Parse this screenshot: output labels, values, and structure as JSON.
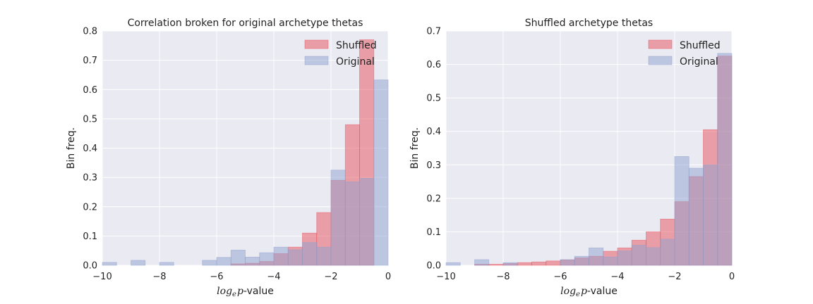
{
  "chart_data": [
    {
      "type": "bar",
      "title": "Correlation broken for original archetype thetas",
      "ylabel": "Bin freq.",
      "xlabel": {
        "prefix": "log",
        "subscript": "e",
        "variable": "p",
        "suffix": "-value"
      },
      "xlim": [
        -10,
        0
      ],
      "ylim": [
        0,
        0.8
      ],
      "xticks": [
        -10,
        -8,
        -6,
        -4,
        -2,
        0
      ],
      "xtick_labels": [
        "−10",
        "−8",
        "−6",
        "−4",
        "−2",
        "0"
      ],
      "yticks": [
        0.0,
        0.1,
        0.2,
        0.3,
        0.4,
        0.5,
        0.6,
        0.7,
        0.8
      ],
      "ytick_labels": [
        "0.0",
        "0.1",
        "0.2",
        "0.3",
        "0.4",
        "0.5",
        "0.6",
        "0.7",
        "0.8"
      ],
      "grid": true,
      "legend_position": "top-right",
      "bin_edges": [
        -10,
        -9.5,
        -9,
        -8.5,
        -8,
        -7.5,
        -7,
        -6.5,
        -6,
        -5.5,
        -5,
        -4.5,
        -4,
        -3.5,
        -3,
        -2.5,
        -2,
        -1.5,
        -1,
        -0.5,
        0
      ],
      "series": [
        {
          "name": "Shuffled",
          "color": "#e8525c",
          "values": [
            0,
            0,
            0,
            0,
            0,
            0,
            0,
            0,
            0,
            0.005,
            0.007,
            0.013,
            0.04,
            0.062,
            0.11,
            0.18,
            0.29,
            0.48,
            0.77,
            0
          ]
        },
        {
          "name": "Original",
          "color": "#8fa2cf",
          "values": [
            0.01,
            0,
            0.017,
            0,
            0.01,
            0,
            0,
            0.017,
            0.027,
            0.052,
            0.028,
            0.043,
            0.062,
            0.053,
            0.078,
            0.062,
            0.325,
            0.285,
            0.297,
            0.633
          ]
        }
      ]
    },
    {
      "type": "bar",
      "title": "Shuffled archetype thetas",
      "ylabel": "Bin freq.",
      "xlabel": {
        "prefix": "log",
        "subscript": "e",
        "variable": "p",
        "suffix": "-value"
      },
      "xlim": [
        -10,
        0
      ],
      "ylim": [
        0,
        0.7
      ],
      "xticks": [
        -10,
        -8,
        -6,
        -4,
        -2,
        0
      ],
      "xtick_labels": [
        "−10",
        "−8",
        "−6",
        "−4",
        "−2",
        "0"
      ],
      "yticks": [
        0.0,
        0.1,
        0.2,
        0.3,
        0.4,
        0.5,
        0.6,
        0.7
      ],
      "ytick_labels": [
        "0.0",
        "0.1",
        "0.2",
        "0.3",
        "0.4",
        "0.5",
        "0.6",
        "0.7"
      ],
      "grid": true,
      "legend_position": "top-right",
      "bin_edges": [
        -10,
        -9.5,
        -9,
        -8.5,
        -8,
        -7.5,
        -7,
        -6.5,
        -6,
        -5.5,
        -5,
        -4.5,
        -4,
        -3.5,
        -3,
        -2.5,
        -2,
        -1.5,
        -1,
        -0.5,
        0
      ],
      "series": [
        {
          "name": "Shuffled",
          "color": "#e8525c",
          "values": [
            0,
            0,
            0.003,
            0.003,
            0.005,
            0.008,
            0.01,
            0.013,
            0.016,
            0.022,
            0.027,
            0.042,
            0.052,
            0.075,
            0.1,
            0.138,
            0.19,
            0.265,
            0.405,
            0.625
          ]
        },
        {
          "name": "Original",
          "color": "#8fa2cf",
          "values": [
            0.008,
            0,
            0.017,
            0,
            0.008,
            0,
            0,
            0,
            0.017,
            0.027,
            0.052,
            0.025,
            0.043,
            0.06,
            0.053,
            0.078,
            0.325,
            0.29,
            0.3,
            0.633
          ]
        }
      ]
    }
  ]
}
